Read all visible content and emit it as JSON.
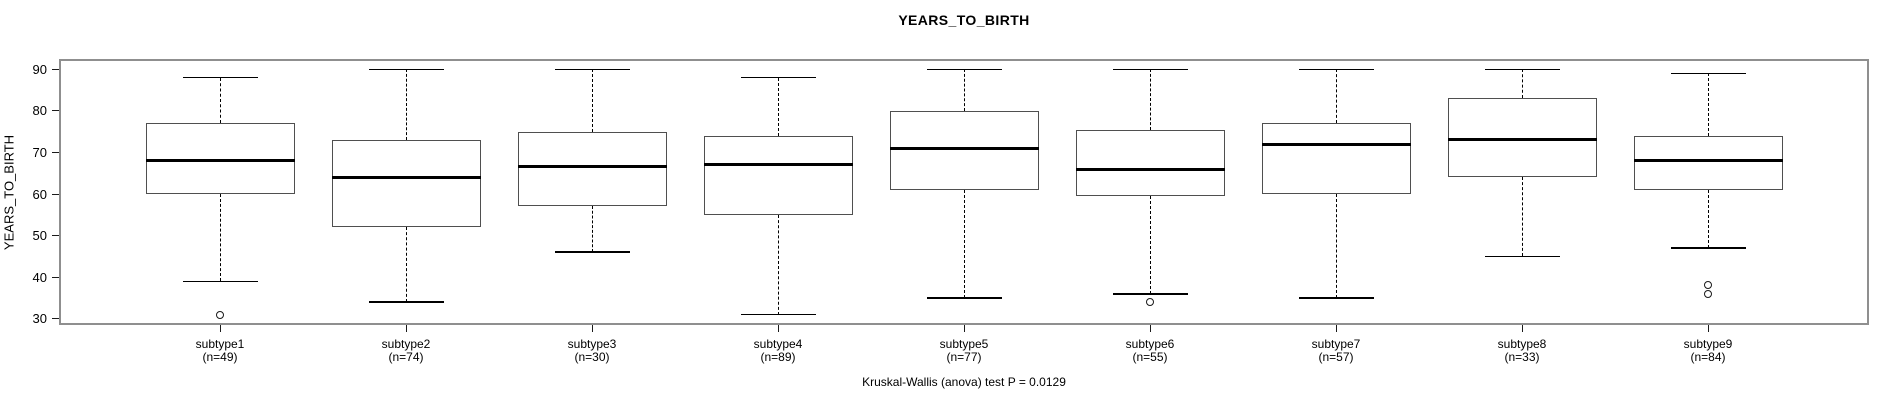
{
  "chart_data": {
    "type": "boxplot",
    "title": "YEARS_TO_BIRTH",
    "ylabel": "YEARS_TO_BIRTH",
    "footer": "Kruskal-Wallis (anova) test P = 0.0129",
    "ylim": [
      30,
      90
    ],
    "yticks": [
      30,
      40,
      50,
      60,
      70,
      80,
      90
    ],
    "grid": false,
    "legend": "none",
    "categories": [
      "subtype1",
      "subtype2",
      "subtype3",
      "subtype4",
      "subtype5",
      "subtype6",
      "subtype7",
      "subtype8",
      "subtype9"
    ],
    "count_labels": [
      "(n=49)",
      "(n=74)",
      "(n=30)",
      "(n=89)",
      "(n=77)",
      "(n=55)",
      "(n=57)",
      "(n=33)",
      "(n=84)"
    ],
    "series": [
      {
        "name": "subtype1",
        "n": 49,
        "whisker_low": 39,
        "q1": 60,
        "median": 68,
        "q3": 77,
        "whisker_high": 88,
        "outliers": [
          31
        ]
      },
      {
        "name": "subtype2",
        "n": 74,
        "whisker_low": 34,
        "q1": 52,
        "median": 64,
        "q3": 73,
        "whisker_high": 90,
        "outliers": []
      },
      {
        "name": "subtype3",
        "n": 30,
        "whisker_low": 46,
        "q1": 57,
        "median": 66.5,
        "q3": 75,
        "whisker_high": 90,
        "outliers": []
      },
      {
        "name": "subtype4",
        "n": 89,
        "whisker_low": 31,
        "q1": 55,
        "median": 67,
        "q3": 74,
        "whisker_high": 88,
        "outliers": []
      },
      {
        "name": "subtype5",
        "n": 77,
        "whisker_low": 35,
        "q1": 61,
        "median": 71,
        "q3": 80,
        "whisker_high": 90,
        "outliers": []
      },
      {
        "name": "subtype6",
        "n": 55,
        "whisker_low": 36,
        "q1": 59.5,
        "median": 66,
        "q3": 75.5,
        "whisker_high": 90,
        "outliers": [
          34
        ]
      },
      {
        "name": "subtype7",
        "n": 57,
        "whisker_low": 35,
        "q1": 60,
        "median": 72,
        "q3": 77,
        "whisker_high": 90,
        "outliers": []
      },
      {
        "name": "subtype8",
        "n": 33,
        "whisker_low": 45,
        "q1": 64,
        "median": 73,
        "q3": 83,
        "whisker_high": 90,
        "outliers": []
      },
      {
        "name": "subtype9",
        "n": 84,
        "whisker_low": 47,
        "q1": 61,
        "median": 68,
        "q3": 74,
        "whisker_high": 89,
        "outliers": [
          38,
          36
        ]
      }
    ],
    "colors": {
      "background": "#ffffff",
      "plot_border": "#8f8f8f",
      "box_border": "#4f4f4f",
      "median": "#000000",
      "whisker": "#000000",
      "text": "#000000"
    }
  }
}
